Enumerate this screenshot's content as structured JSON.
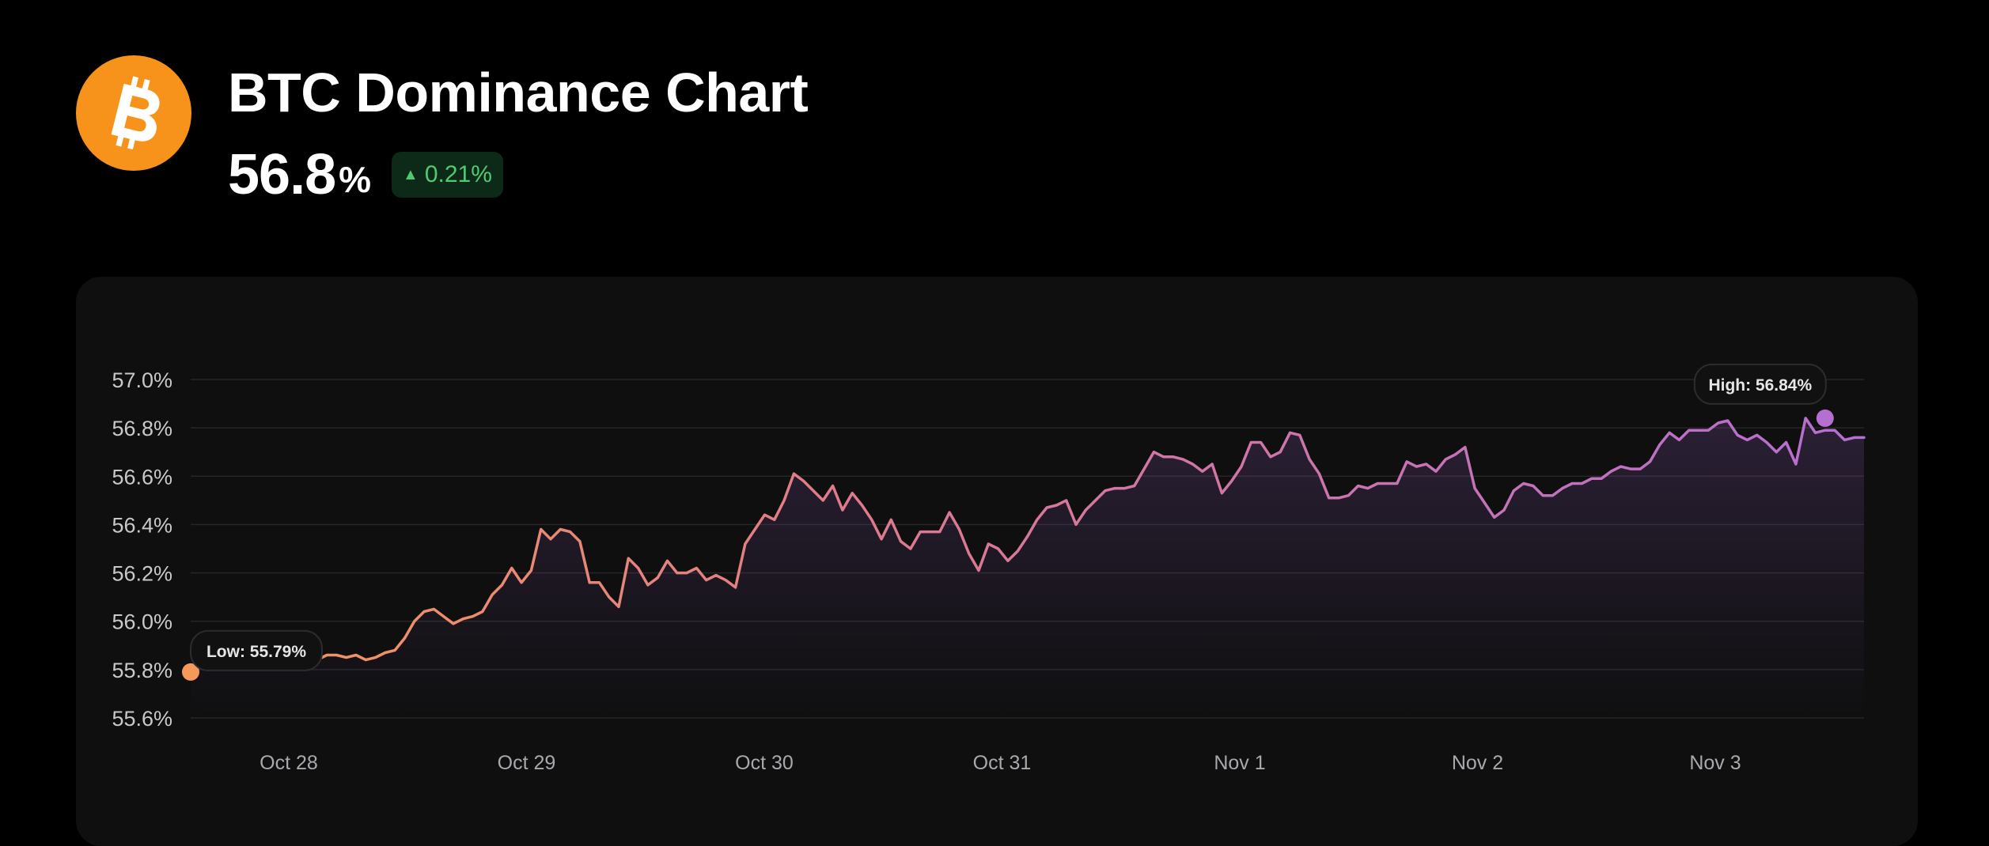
{
  "header": {
    "title": "BTC Dominance Chart",
    "value": "56.8",
    "unit": "%",
    "change": "0.21%",
    "change_direction": "up",
    "logo_icon": "bitcoin-icon",
    "change_icon": "triangle-up-icon"
  },
  "colors": {
    "background": "#000000",
    "card": "#0f0f10",
    "logo": "#f7931a",
    "positive": "#4ecb71",
    "line_start": "#f4995a",
    "line_mid": "#df7a8c",
    "line_end": "#b56fd1",
    "grid": "#262628",
    "tick_text": "#c9c9cc"
  },
  "chart_data": {
    "type": "area",
    "ylim": [
      55.6,
      57.0
    ],
    "ytick_labels": [
      "57.0%",
      "56.8%",
      "56.6%",
      "56.4%",
      "56.2%",
      "56.0%",
      "55.8%",
      "55.6%"
    ],
    "yticks": [
      57.0,
      56.8,
      56.6,
      56.4,
      56.2,
      56.0,
      55.8,
      55.6
    ],
    "xtick_labels": [
      "Oct 28",
      "Oct 29",
      "Oct 30",
      "Oct 31",
      "Nov 1",
      "Nov 2",
      "Nov 3"
    ],
    "grid": true,
    "values": [
      55.79,
      55.85,
      55.86,
      55.86,
      55.86,
      55.86,
      55.85,
      55.84,
      55.85,
      55.86,
      55.84,
      55.85,
      55.86,
      55.84,
      55.86,
      55.86,
      55.85,
      55.86,
      55.84,
      55.85,
      55.87,
      55.88,
      55.93,
      56.0,
      56.04,
      56.05,
      56.02,
      55.99,
      56.01,
      56.02,
      56.04,
      56.11,
      56.15,
      56.22,
      56.16,
      56.21,
      56.38,
      56.34,
      56.38,
      56.37,
      56.33,
      56.16,
      56.16,
      56.1,
      56.06,
      56.26,
      56.22,
      56.15,
      56.18,
      56.25,
      56.2,
      56.2,
      56.22,
      56.17,
      56.19,
      56.17,
      56.14,
      56.32,
      56.38,
      56.44,
      56.42,
      56.5,
      56.61,
      56.58,
      56.54,
      56.5,
      56.56,
      56.46,
      56.53,
      56.48,
      56.42,
      56.34,
      56.42,
      56.33,
      56.3,
      56.37,
      56.37,
      56.37,
      56.45,
      56.38,
      56.28,
      56.21,
      56.32,
      56.3,
      56.25,
      56.29,
      56.35,
      56.42,
      56.47,
      56.48,
      56.5,
      56.4,
      56.46,
      56.5,
      56.54,
      56.55,
      56.55,
      56.56,
      56.63,
      56.7,
      56.68,
      56.68,
      56.67,
      56.65,
      56.62,
      56.65,
      56.53,
      56.58,
      56.64,
      56.74,
      56.74,
      56.68,
      56.7,
      56.78,
      56.77,
      56.67,
      56.61,
      56.51,
      56.51,
      56.52,
      56.56,
      56.55,
      56.57,
      56.57,
      56.57,
      56.66,
      56.64,
      56.65,
      56.62,
      56.67,
      56.69,
      56.72,
      56.55,
      56.49,
      56.43,
      56.46,
      56.54,
      56.57,
      56.56,
      56.52,
      56.52,
      56.55,
      56.57,
      56.57,
      56.59,
      56.59,
      56.62,
      56.64,
      56.63,
      56.63,
      56.66,
      56.73,
      56.78,
      56.75,
      56.79,
      56.79,
      56.79,
      56.82,
      56.83,
      56.77,
      56.75,
      56.77,
      56.74,
      56.7,
      56.74,
      56.65,
      56.84,
      56.78,
      56.79,
      56.79,
      56.75,
      56.76,
      56.76
    ],
    "annotations": [
      {
        "label": "Low: 55.79%",
        "index": 0,
        "value": 55.79
      },
      {
        "label": "High: 56.84%",
        "index": 168,
        "value": 56.84
      }
    ]
  }
}
